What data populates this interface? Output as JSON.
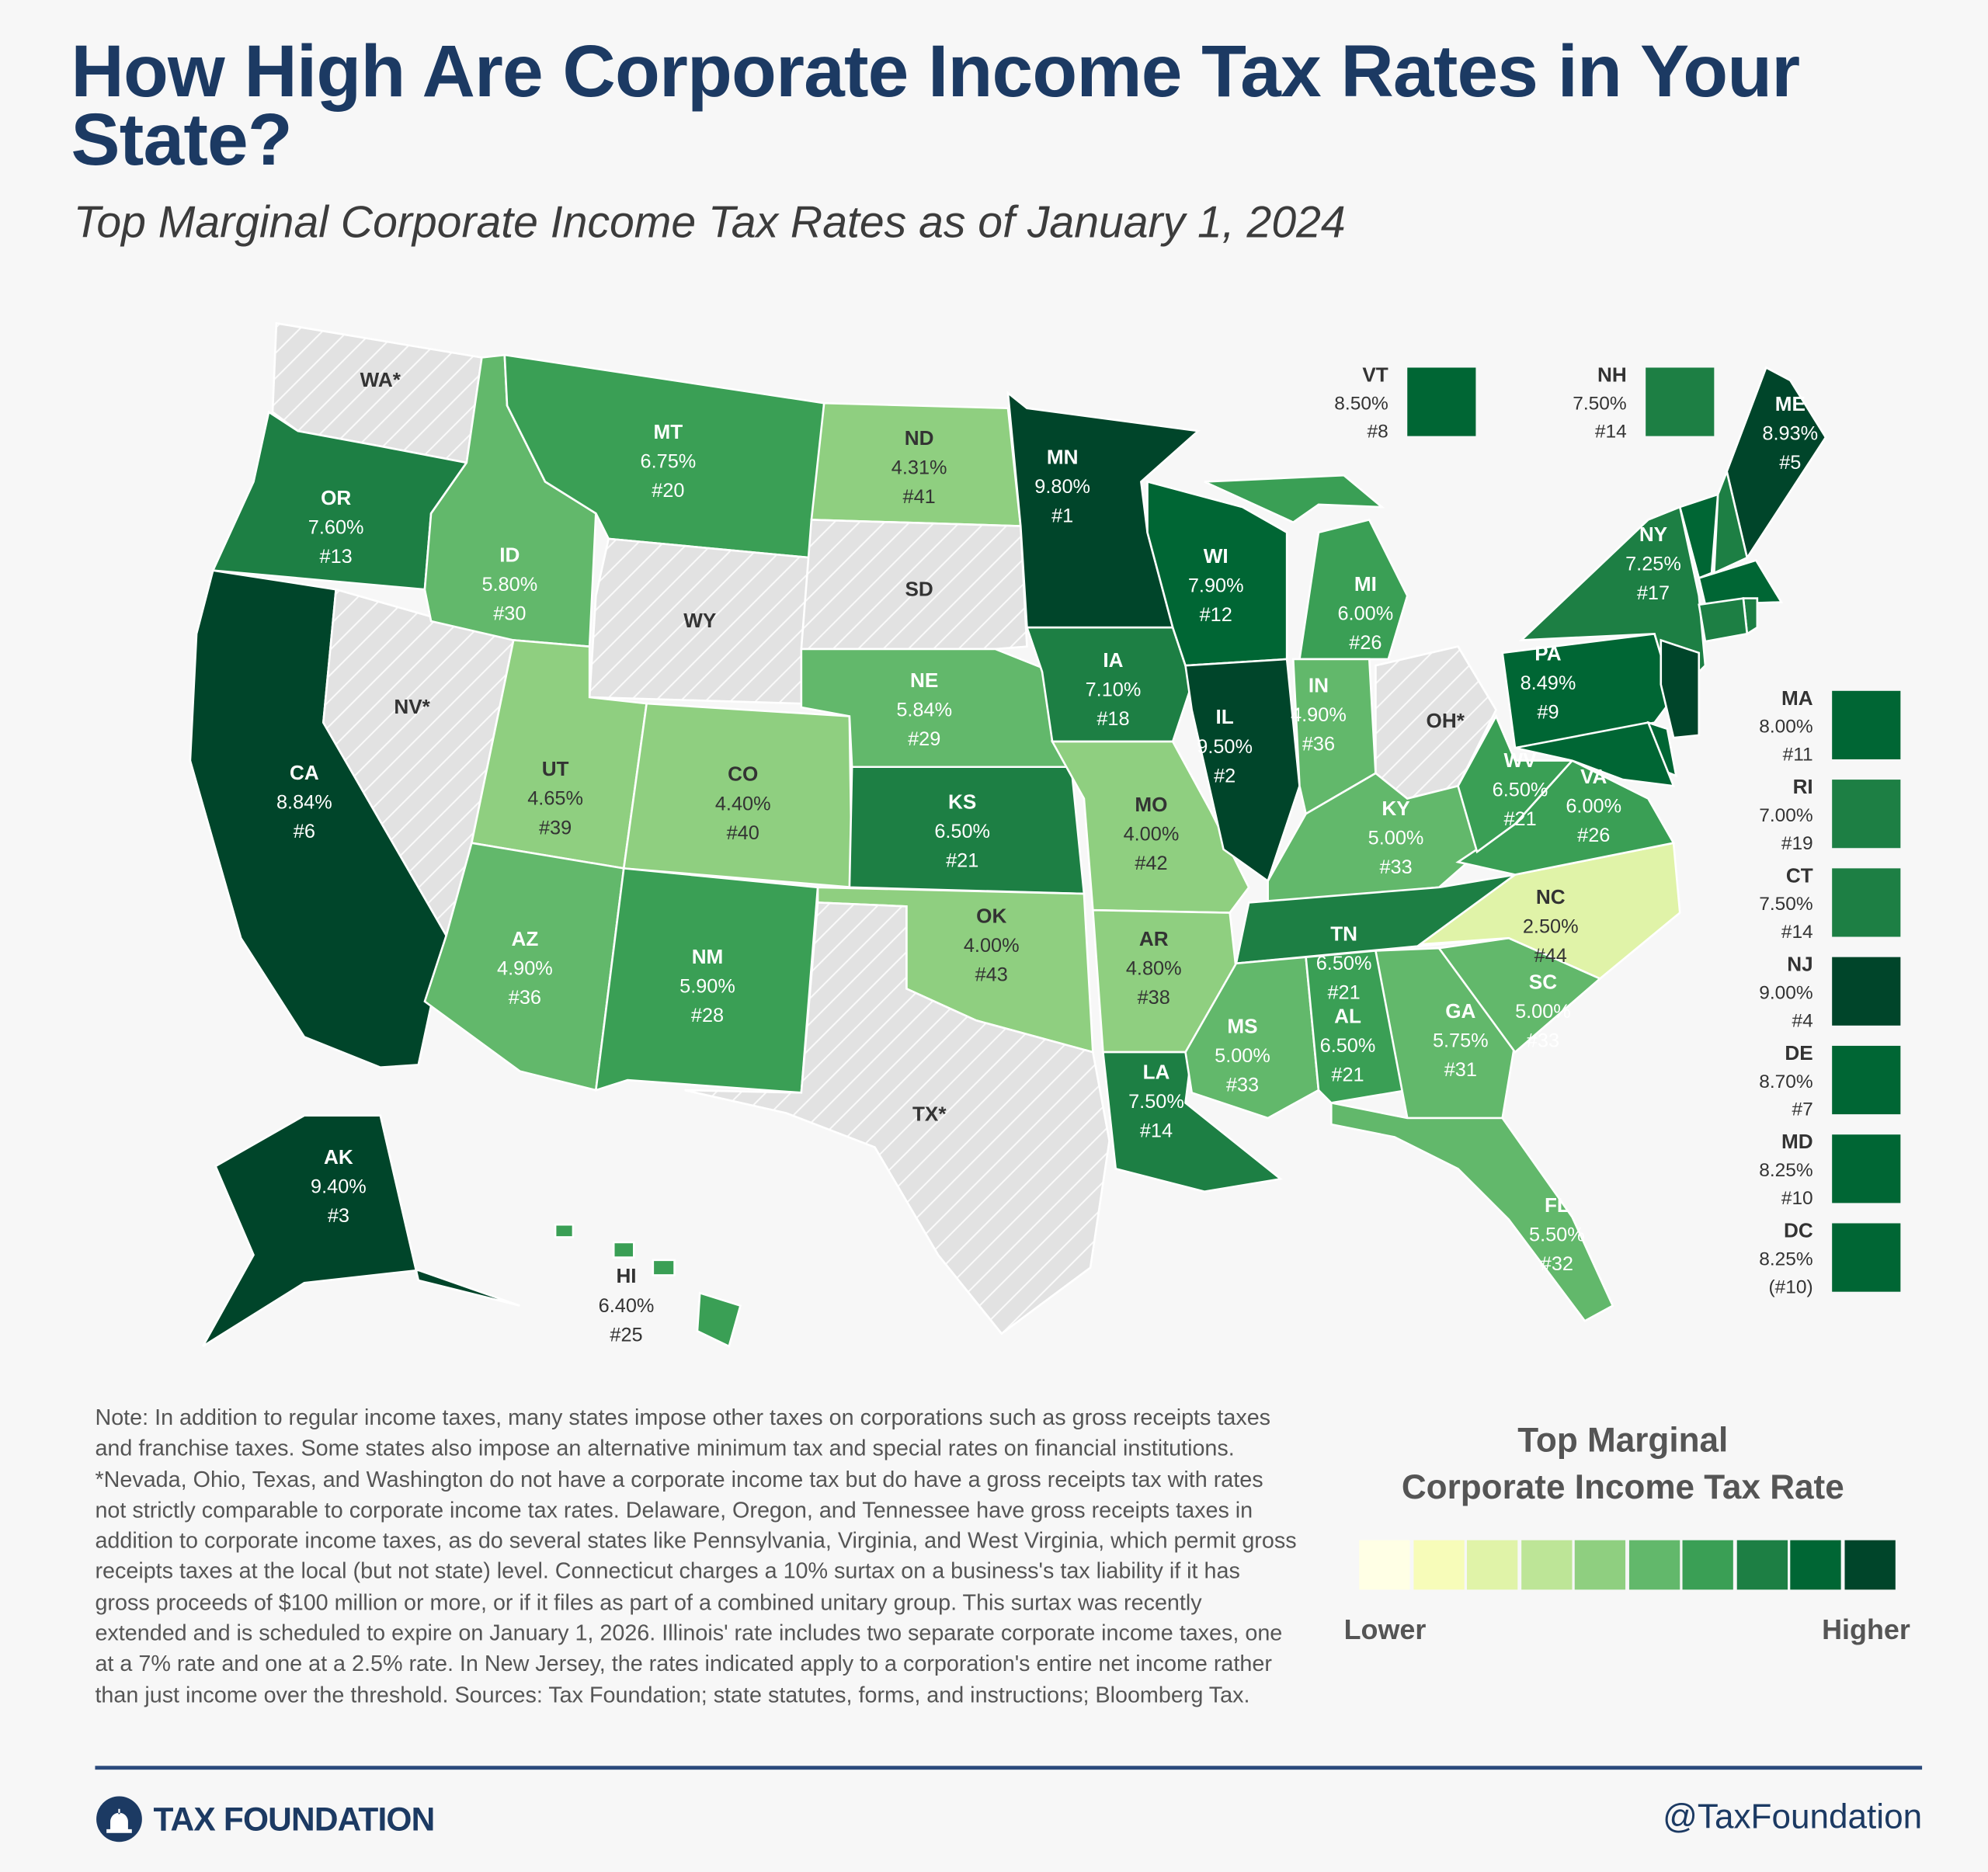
{
  "title": "How High Are Corporate Income Tax Rates in Your State?",
  "subtitle": "Top Marginal Corporate Income Tax Rates as of January 1, 2024",
  "colors": {
    "scale": [
      "#ffffe5",
      "#f7fcb9",
      "#e0f3a8",
      "#bde597",
      "#8fcf80",
      "#62b86b",
      "#3a9f55",
      "#1d7f44",
      "#006634",
      "#00452a"
    ],
    "no_tax": "#e2e2e2",
    "title": "#1c3a63"
  },
  "states": [
    {
      "abbr": "WA*",
      "rate": "",
      "rank": "",
      "tier": 0
    },
    {
      "abbr": "OR",
      "rate": "7.60%",
      "rank": "#13",
      "tier": 8
    },
    {
      "abbr": "CA",
      "rate": "8.84%",
      "rank": "#6",
      "tier": 10
    },
    {
      "abbr": "NV*",
      "rate": "",
      "rank": "",
      "tier": 0
    },
    {
      "abbr": "ID",
      "rate": "5.80%",
      "rank": "#30",
      "tier": 6
    },
    {
      "abbr": "MT",
      "rate": "6.75%",
      "rank": "#20",
      "tier": 7
    },
    {
      "abbr": "WY",
      "rate": "",
      "rank": "",
      "tier": 0
    },
    {
      "abbr": "UT",
      "rate": "4.65%",
      "rank": "#39",
      "tier": 5
    },
    {
      "abbr": "CO",
      "rate": "4.40%",
      "rank": "#40",
      "tier": 5
    },
    {
      "abbr": "AZ",
      "rate": "4.90%",
      "rank": "#36",
      "tier": 6
    },
    {
      "abbr": "NM",
      "rate": "5.90%",
      "rank": "#28",
      "tier": 7
    },
    {
      "abbr": "ND",
      "rate": "4.31%",
      "rank": "#41",
      "tier": 5
    },
    {
      "abbr": "SD",
      "rate": "",
      "rank": "",
      "tier": 0
    },
    {
      "abbr": "NE",
      "rate": "5.84%",
      "rank": "#29",
      "tier": 6
    },
    {
      "abbr": "KS",
      "rate": "6.50%",
      "rank": "#21",
      "tier": 8
    },
    {
      "abbr": "OK",
      "rate": "4.00%",
      "rank": "#43",
      "tier": 5
    },
    {
      "abbr": "TX*",
      "rate": "",
      "rank": "",
      "tier": 0
    },
    {
      "abbr": "MN",
      "rate": "9.80%",
      "rank": "#1",
      "tier": 10
    },
    {
      "abbr": "IA",
      "rate": "7.10%",
      "rank": "#18",
      "tier": 8
    },
    {
      "abbr": "MO",
      "rate": "4.00%",
      "rank": "#42",
      "tier": 5
    },
    {
      "abbr": "AR",
      "rate": "4.80%",
      "rank": "#38",
      "tier": 5
    },
    {
      "abbr": "LA",
      "rate": "7.50%",
      "rank": "#14",
      "tier": 8
    },
    {
      "abbr": "WI",
      "rate": "7.90%",
      "rank": "#12",
      "tier": 9
    },
    {
      "abbr": "IL",
      "rate": "9.50%",
      "rank": "#2",
      "tier": 10
    },
    {
      "abbr": "MI",
      "rate": "6.00%",
      "rank": "#26",
      "tier": 7
    },
    {
      "abbr": "IN",
      "rate": "4.90%",
      "rank": "#36",
      "tier": 6
    },
    {
      "abbr": "OH*",
      "rate": "",
      "rank": "",
      "tier": 0
    },
    {
      "abbr": "KY",
      "rate": "5.00%",
      "rank": "#33",
      "tier": 6
    },
    {
      "abbr": "TN",
      "rate": "6.50%",
      "rank": "#21",
      "tier": 8
    },
    {
      "abbr": "MS",
      "rate": "5.00%",
      "rank": "#33",
      "tier": 6
    },
    {
      "abbr": "AL",
      "rate": "6.50%",
      "rank": "#21",
      "tier": 7
    },
    {
      "abbr": "GA",
      "rate": "5.75%",
      "rank": "#31",
      "tier": 6
    },
    {
      "abbr": "FL",
      "rate": "5.50%",
      "rank": "#32",
      "tier": 6
    },
    {
      "abbr": "SC",
      "rate": "5.00%",
      "rank": "#33",
      "tier": 6
    },
    {
      "abbr": "NC",
      "rate": "2.50%",
      "rank": "#44",
      "tier": 3
    },
    {
      "abbr": "VA",
      "rate": "6.00%",
      "rank": "#26",
      "tier": 7
    },
    {
      "abbr": "WV",
      "rate": "6.50%",
      "rank": "#21",
      "tier": 7
    },
    {
      "abbr": "PA",
      "rate": "8.49%",
      "rank": "#9",
      "tier": 9
    },
    {
      "abbr": "NY",
      "rate": "7.25%",
      "rank": "#17",
      "tier": 8
    },
    {
      "abbr": "ME",
      "rate": "8.93%",
      "rank": "#5",
      "tier": 10
    },
    {
      "abbr": "AK",
      "rate": "9.40%",
      "rank": "#3",
      "tier": 10
    },
    {
      "abbr": "HI",
      "rate": "6.40%",
      "rank": "#25",
      "tier": 7
    }
  ],
  "small_states": [
    {
      "abbr": "VT",
      "rate": "8.50%",
      "rank": "#8",
      "tier": 9
    },
    {
      "abbr": "NH",
      "rate": "7.50%",
      "rank": "#14",
      "tier": 8
    },
    {
      "abbr": "MA",
      "rate": "8.00%",
      "rank": "#11",
      "tier": 9
    },
    {
      "abbr": "RI",
      "rate": "7.00%",
      "rank": "#19",
      "tier": 8
    },
    {
      "abbr": "CT",
      "rate": "7.50%",
      "rank": "#14",
      "tier": 8
    },
    {
      "abbr": "NJ",
      "rate": "9.00%",
      "rank": "#4",
      "tier": 10
    },
    {
      "abbr": "DE",
      "rate": "8.70%",
      "rank": "#7",
      "tier": 9
    },
    {
      "abbr": "MD",
      "rate": "8.25%",
      "rank": "#10",
      "tier": 9
    },
    {
      "abbr": "DC",
      "rate": "8.25%",
      "rank": "(#10)",
      "tier": 9
    }
  ],
  "note": "Note: In addition to regular income taxes, many states impose other taxes on corporations such as gross receipts taxes and franchise taxes. Some states also impose an alternative minimum tax and special rates on financial institutions. *Nevada, Ohio, Texas, and Washington do not have a corporate income tax but do have a gross receipts tax with rates not strictly comparable to corporate income tax rates. Delaware, Oregon, and Tennessee have gross receipts taxes in addition to corporate income taxes, as do several states like Pennsylvania, Virginia, and West Virginia, which permit gross receipts taxes at the local (but not state) level. Connecticut charges a 10% surtax on a business's tax liability if it has gross proceeds of $100 million or more, or if it files as part of a combined unitary group. This surtax was recently extended and is scheduled to expire on January 1, 2026. Illinois' rate includes two separate corporate income taxes, one at a 7% rate and one at a 2.5% rate. In New Jersey, the rates indicated apply to a corporation's entire net income rather than just income over the threshold.",
  "sources": "Sources: Tax Foundation; state statutes, forms, and instructions; Bloomberg Tax.",
  "legend": {
    "title_line1": "Top Marginal",
    "title_line2": "Corporate Income Tax Rate",
    "low": "Lower",
    "high": "Higher"
  },
  "footer": {
    "logo": "TAX FOUNDATION",
    "handle": "@TaxFoundation"
  }
}
